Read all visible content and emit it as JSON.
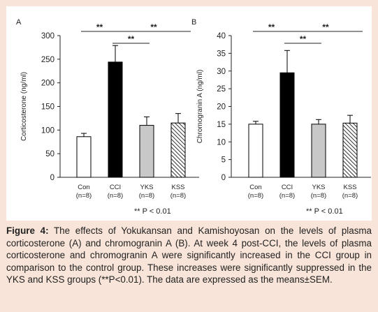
{
  "chart_data": [
    {
      "type": "bar",
      "panel_label": "A",
      "ylabel": "Corticosterone (ng/ml)",
      "ylim": [
        0,
        300
      ],
      "yticks": [
        0,
        50,
        100,
        150,
        200,
        250,
        300
      ],
      "categories": [
        {
          "name": "Con",
          "n": "(n=8)"
        },
        {
          "name": "CCI",
          "n": "(n=8)"
        },
        {
          "name": "YKS",
          "n": "(n=8)"
        },
        {
          "name": "KSS",
          "n": "(n=8)"
        }
      ],
      "values": [
        86,
        244,
        110,
        115
      ],
      "errors": [
        7,
        35,
        18,
        20
      ],
      "fills": [
        "white",
        "black",
        "lightgray",
        "hatched"
      ],
      "significance": [
        {
          "from": 0,
          "to": 1,
          "label": "**"
        },
        {
          "from": 1,
          "to": 3,
          "label": "**"
        },
        {
          "from": 1,
          "to": 2,
          "label": "**"
        }
      ],
      "note": "** P < 0.01"
    },
    {
      "type": "bar",
      "panel_label": "B",
      "ylabel": "Chromogranin A (ng/ml)",
      "ylim": [
        0,
        40
      ],
      "yticks": [
        0,
        5,
        10,
        15,
        20,
        25,
        30,
        35,
        40
      ],
      "categories": [
        {
          "name": "Con",
          "n": "(n=8)"
        },
        {
          "name": "CCI",
          "n": "(n=8)"
        },
        {
          "name": "YKS",
          "n": "(n=8)"
        },
        {
          "name": "KSS",
          "n": "(n=8)"
        }
      ],
      "values": [
        15,
        29.5,
        15,
        15.3
      ],
      "errors": [
        0.8,
        6.3,
        1.3,
        2.2
      ],
      "fills": [
        "white",
        "black",
        "lightgray",
        "hatched"
      ],
      "significance": [
        {
          "from": 0,
          "to": 1,
          "label": "**"
        },
        {
          "from": 1,
          "to": 3,
          "label": "**"
        },
        {
          "from": 1,
          "to": 2,
          "label": "**"
        }
      ],
      "note": "** P < 0.01"
    }
  ],
  "caption": {
    "label": "Figure 4:",
    "text": " The effects of Yokukansan and Kamishoyosan on the levels of plasma corticosterone (A) and chromogranin A (B). At week 4 post-CCI, the levels of plasma corticosterone and chromogranin A were significantly increased in the CCI group in comparison to the control group. These increases were significantly suppressed in the YKS and KSS groups (**P<0.01). The data are expressed as the means±SEM."
  },
  "colors": {
    "page_background": "#f8e4d8",
    "panel_background": "#ffffff",
    "bar_black": "#000000",
    "bar_gray": "#c8c8c8",
    "axis": "#222222"
  }
}
